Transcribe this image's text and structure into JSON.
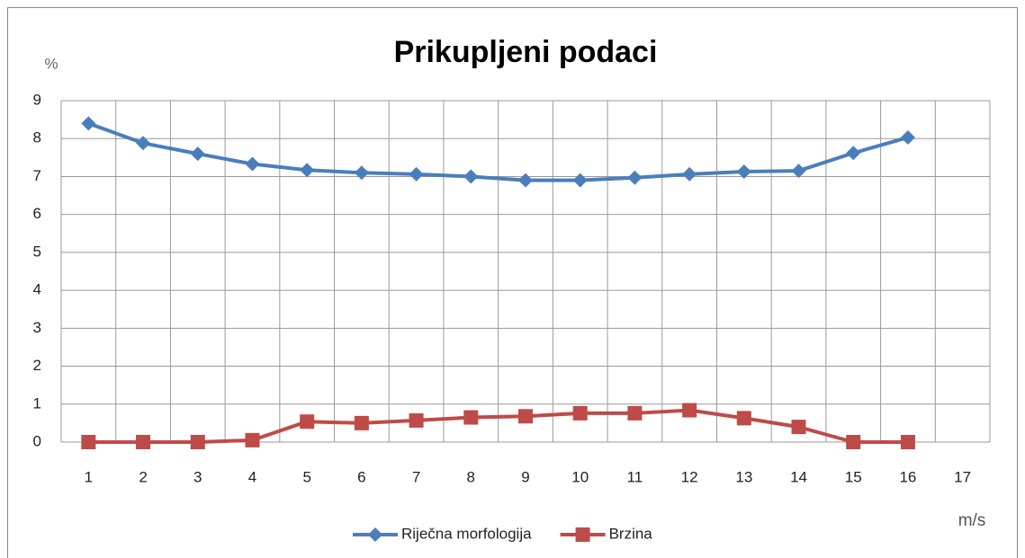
{
  "chart_data": {
    "type": "line",
    "title": "Prikupljeni podaci",
    "y_label": "%",
    "x_label": "m/s",
    "categories": [
      "1",
      "2",
      "3",
      "4",
      "5",
      "6",
      "7",
      "8",
      "9",
      "10",
      "11",
      "12",
      "13",
      "14",
      "15",
      "16",
      "17"
    ],
    "series": [
      {
        "name": "Riječna morfologija",
        "color": "#4a7ebb",
        "marker": "diamond",
        "values": [
          8.4,
          7.88,
          7.6,
          7.33,
          7.17,
          7.1,
          7.06,
          7.0,
          6.9,
          6.9,
          6.97,
          7.06,
          7.13,
          7.15,
          7.62,
          8.03,
          null
        ]
      },
      {
        "name": "Brzina",
        "color": "#be4b48",
        "marker": "square",
        "values": [
          0,
          0,
          0,
          0.05,
          0.54,
          0.5,
          0.57,
          0.65,
          0.68,
          0.76,
          0.76,
          0.84,
          0.63,
          0.4,
          0,
          0,
          null
        ]
      }
    ],
    "ylim": [
      0,
      9
    ],
    "yticks": [
      0,
      1,
      2,
      3,
      4,
      5,
      6,
      7,
      8,
      9
    ],
    "grid": true,
    "legend": "bottom"
  }
}
